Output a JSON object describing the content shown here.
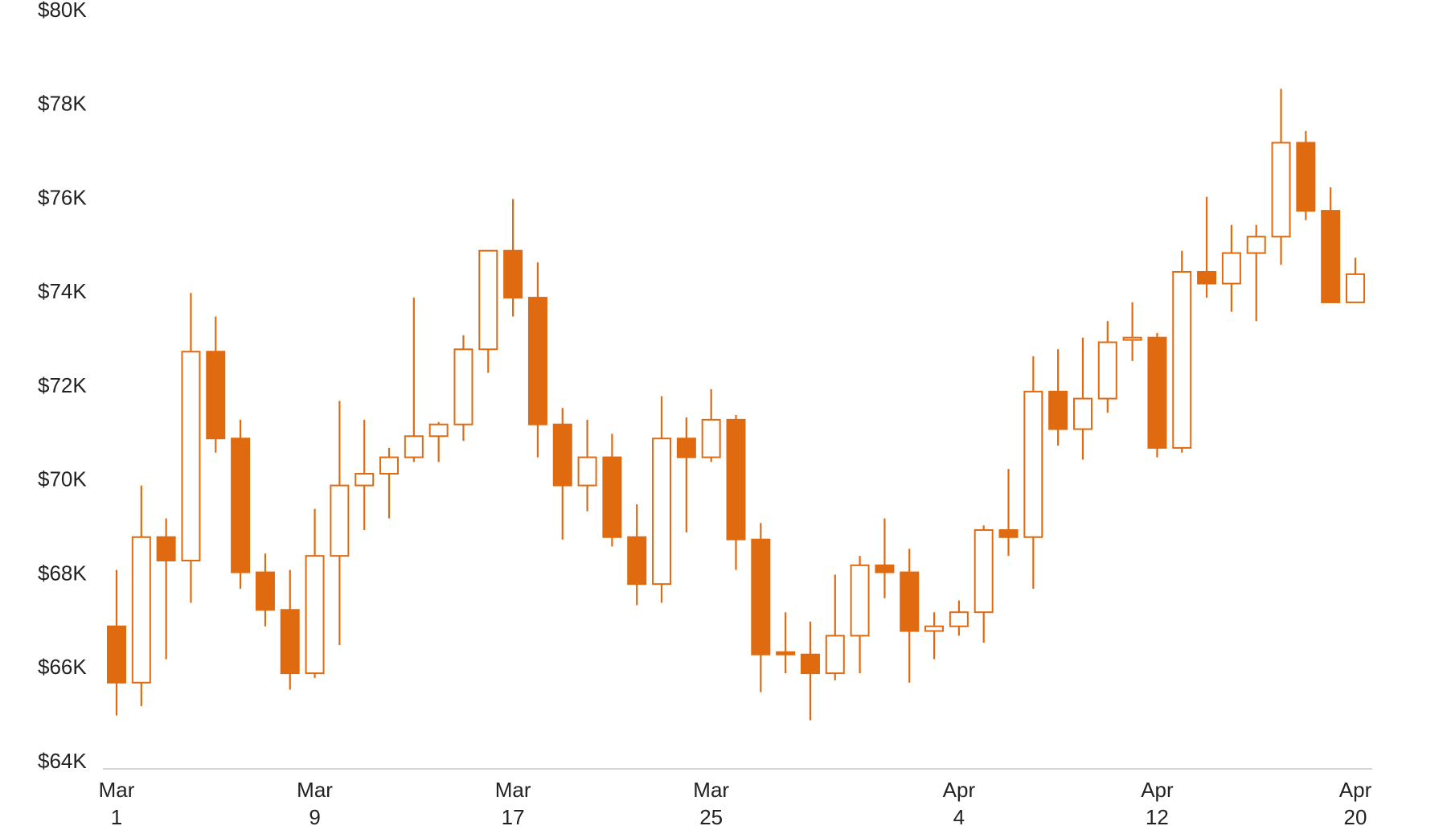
{
  "chart_data": {
    "type": "candlestick",
    "color": "#e06a10",
    "categories": [
      "Mar\n1",
      null,
      null,
      null,
      null,
      null,
      null,
      null,
      "Mar\n9",
      null,
      null,
      null,
      null,
      null,
      null,
      null,
      "Mar\n17",
      null,
      null,
      null,
      null,
      null,
      null,
      null,
      "Mar\n25",
      null,
      null,
      null,
      null,
      null,
      null,
      null,
      null,
      null,
      "Apr\n4",
      null,
      null,
      null,
      null,
      null,
      null,
      null,
      "Apr\n12",
      null,
      null,
      null,
      null,
      null,
      null,
      null,
      "Apr\n20"
    ],
    "open": [
      66900,
      65700,
      68800,
      68300,
      72750,
      70900,
      68050,
      67250,
      65900,
      68400,
      69900,
      70150,
      70500,
      70950,
      71200,
      72800,
      74900,
      73900,
      71200,
      69900,
      70500,
      68800,
      67800,
      70900,
      70500,
      71300,
      68750,
      66350,
      66300,
      65900,
      66700,
      68200,
      68050,
      66800,
      66900,
      67200,
      68950,
      68800,
      71900,
      71100,
      71750,
      73000,
      73050,
      70700,
      74450,
      74200,
      74850,
      75200,
      77200,
      75750,
      73800
    ],
    "high": [
      68100,
      69900,
      69200,
      74000,
      73500,
      71300,
      68450,
      68100,
      69400,
      71700,
      71300,
      70700,
      73900,
      71250,
      73100,
      74900,
      76000,
      74650,
      71550,
      71300,
      71000,
      69500,
      71800,
      71350,
      71950,
      71400,
      69100,
      67200,
      67000,
      68000,
      68400,
      69200,
      68550,
      67200,
      67450,
      69050,
      70250,
      72650,
      72800,
      73050,
      73400,
      73800,
      73150,
      74900,
      76050,
      75450,
      75450,
      78350,
      77450,
      76250,
      74750
    ],
    "low": [
      65000,
      65200,
      66200,
      67400,
      70600,
      67700,
      66900,
      65550,
      65800,
      66500,
      68950,
      69200,
      70400,
      70400,
      70850,
      72300,
      73500,
      70500,
      68750,
      69350,
      68600,
      67350,
      67400,
      68900,
      70400,
      68100,
      65500,
      65900,
      64900,
      65750,
      65900,
      67500,
      65700,
      66200,
      66700,
      66550,
      68400,
      67700,
      70750,
      70450,
      71450,
      72550,
      70500,
      70600,
      73900,
      73600,
      73400,
      74600,
      75550,
      73800,
      73800
    ],
    "close": [
      65700,
      68800,
      68300,
      72750,
      70900,
      68050,
      67250,
      65900,
      68400,
      69900,
      70150,
      70500,
      70950,
      71200,
      72800,
      74900,
      73900,
      71200,
      69900,
      70500,
      68800,
      67800,
      70900,
      70500,
      71300,
      68750,
      66300,
      66300,
      65900,
      66700,
      68200,
      68050,
      66800,
      66900,
      67200,
      68950,
      68800,
      71900,
      71100,
      71750,
      72950,
      73050,
      70700,
      74450,
      74200,
      74850,
      75200,
      77200,
      75750,
      73800,
      74400
    ],
    "ylim": [
      64000,
      80000
    ],
    "yticks": [
      {
        "value": 64000,
        "label": "$64K"
      },
      {
        "value": 66000,
        "label": "$66K"
      },
      {
        "value": 68000,
        "label": "$68K"
      },
      {
        "value": 70000,
        "label": "$70K"
      },
      {
        "value": 72000,
        "label": "$72K"
      },
      {
        "value": 74000,
        "label": "$74K"
      },
      {
        "value": 76000,
        "label": "$76K"
      },
      {
        "value": 78000,
        "label": "$78K"
      },
      {
        "value": 80000,
        "label": "$80K"
      }
    ],
    "grid": false
  }
}
